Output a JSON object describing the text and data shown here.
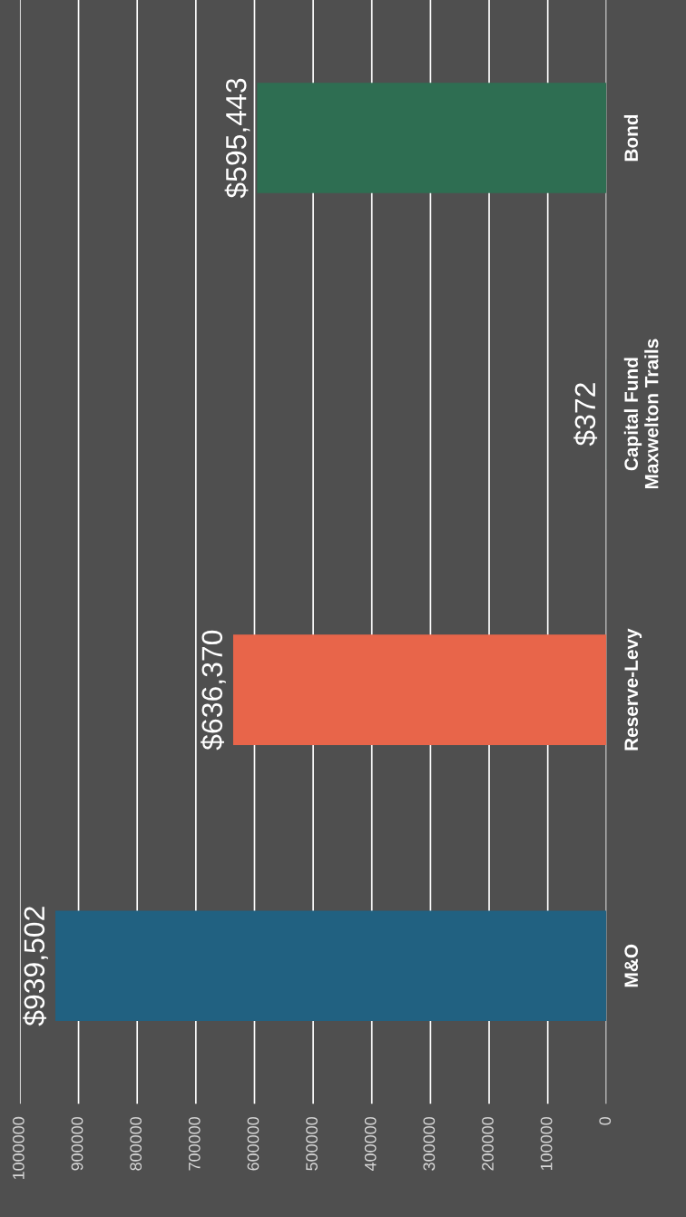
{
  "chart_data": {
    "type": "bar",
    "orientation": "horizontal",
    "categories": [
      "Bond",
      "Capital Fund\nMaxwelton Trails",
      "Reserve-Levy",
      "M&O"
    ],
    "values": [
      595443,
      372,
      636370,
      939502
    ],
    "colors": [
      "#2e6e52",
      "#2e6e52",
      "#e8654a",
      "#216181"
    ],
    "value_labels": [
      "$595,443",
      "$372",
      "$636,370",
      "$939,502"
    ],
    "xlim": [
      1000000,
      0
    ],
    "xticks": [
      0,
      100000,
      200000,
      300000,
      400000,
      500000,
      600000,
      700000,
      800000,
      900000,
      1000000
    ],
    "grid": "x"
  }
}
